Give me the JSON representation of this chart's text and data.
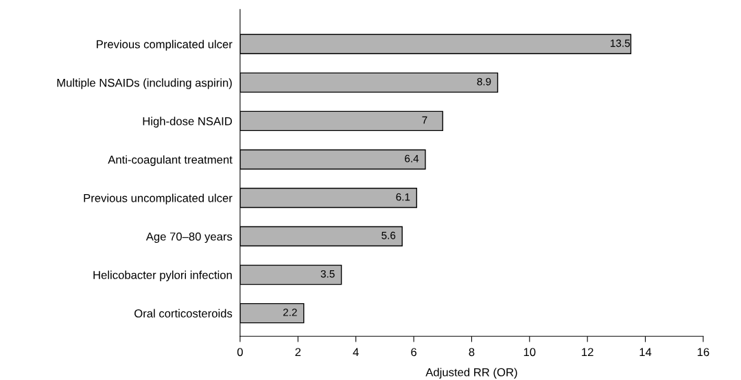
{
  "chart_data": {
    "type": "bar",
    "orientation": "horizontal",
    "xlabel": "Adjusted RR (OR)",
    "categories": [
      "Previous complicated ulcer",
      "Multiple NSAIDs (including aspirin)",
      "High-dose NSAID",
      "Anti-coagulant treatment",
      "Previous uncomplicated ulcer",
      "Age 70–80 years",
      "Helicobacter pylori infection",
      "Oral corticosteroids"
    ],
    "values": [
      13.5,
      8.9,
      7,
      6.4,
      6.1,
      5.6,
      3.5,
      2.2
    ],
    "color": "#b3b3b3",
    "xlim": [
      0,
      16
    ],
    "xticks": [
      0,
      2,
      4,
      6,
      8,
      10,
      12,
      14,
      16
    ],
    "data_labels": true,
    "grid": false,
    "legend": false
  }
}
